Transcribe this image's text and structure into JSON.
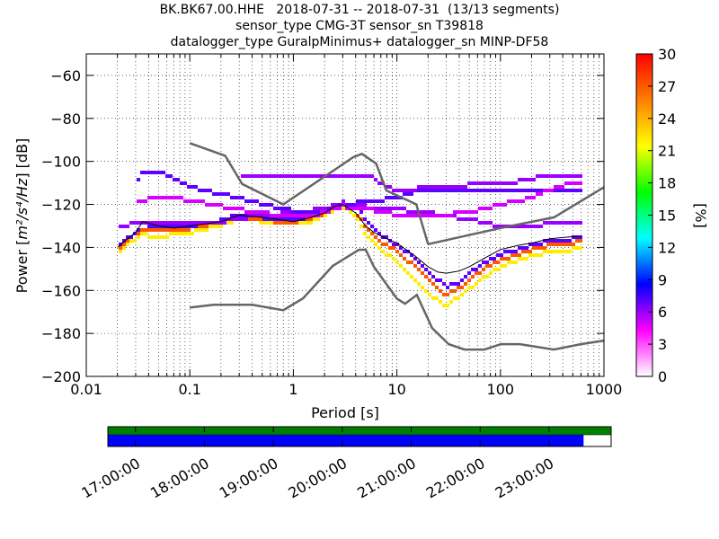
{
  "chart_data": {
    "type": "heatmap",
    "title": "BK.BK67.00.HHE   2018-07-31 -- 2018-07-31  (13/13 segments)",
    "subtitle_lines": [
      "sensor_type CMG-3T sensor_sn T39818",
      "datalogger_type GuralpMinimus+ datalogger_sn MINP-DF58"
    ],
    "xlabel": "Period [s]",
    "ylabel_prefix": "Power [",
    "ylabel_unit": "m²/s⁴/Hz",
    "ylabel_suffix": "] [dB]",
    "x_scale": "log",
    "xlim": [
      0.01,
      1000
    ],
    "ylim": [
      -200,
      -50
    ],
    "x_ticks": [
      0.01,
      0.1,
      1,
      10,
      100,
      1000
    ],
    "x_tick_labels": [
      "0.01",
      "0.1",
      "1",
      "10",
      "100",
      "1000"
    ],
    "y_ticks": [
      -200,
      -180,
      -160,
      -140,
      -120,
      -100,
      -80,
      -60
    ],
    "y_tick_labels": [
      "−200",
      "−180",
      "−160",
      "−140",
      "−120",
      "−100",
      "−80",
      "−60"
    ],
    "colorbar": {
      "label": "[%]",
      "range": [
        0,
        30
      ],
      "ticks": [
        0,
        3,
        6,
        9,
        12,
        15,
        18,
        21,
        24,
        27,
        30
      ],
      "tick_labels": [
        "0",
        "3",
        "6",
        "9",
        "12",
        "15",
        "18",
        "21",
        "24",
        "27",
        "30"
      ],
      "colormap": [
        "#ffffff",
        "#ff00ff",
        "#0000ff",
        "#00ffff",
        "#00ff00",
        "#ffff00",
        "#ff7f00",
        "#ff0000"
      ]
    },
    "noise_models": [
      {
        "period": [
          0.1,
          0.22,
          0.32,
          0.8,
          3.8,
          4.6,
          6.3,
          7.9,
          15.4,
          20
        ],
        "db": [
          -91.5,
          -97.4,
          -110.5,
          -120,
          -98,
          -96.5,
          -101,
          -113.5,
          -120,
          -138.5
        ]
      },
      {
        "period": [
          0.1,
          0.17,
          0.4,
          0.8,
          1.24,
          2.4,
          4.3,
          5,
          6,
          10,
          12,
          15.6,
          21.9,
          31.6,
          45,
          70,
          101,
          154,
          328,
          600,
          10000
        ],
        "db": [
          -168,
          -166.7,
          -166.7,
          -169.2,
          -163.7,
          -148.6,
          -141.1,
          -141.1,
          -149,
          -163.8,
          -166.2,
          -162.1,
          -177.5,
          -185,
          -187.5,
          -187.5,
          -185,
          -185,
          -187.5,
          -185,
          -176
        ]
      },
      {
        "period": [
          20,
          100,
          330,
          1000
        ],
        "db": [
          -138.5,
          -131,
          -126,
          -112
        ]
      }
    ],
    "mean_curve": {
      "period": [
        0.02,
        0.025,
        0.03,
        0.035,
        0.05,
        0.07,
        0.1,
        0.2,
        0.3,
        0.5,
        0.7,
        1,
        1.5,
        2,
        2.5,
        3,
        4,
        5,
        6,
        8,
        10,
        15,
        20,
        25,
        30,
        40,
        50,
        70,
        100,
        150,
        200,
        300,
        500,
        600
      ],
      "db": [
        -140,
        -136,
        -133,
        -128,
        -130,
        -131,
        -130,
        -128,
        -125,
        -126,
        -127,
        -128,
        -126,
        -124,
        -121,
        -120,
        -124,
        -130,
        -133,
        -136,
        -138,
        -144,
        -149,
        -151.5,
        -152,
        -151,
        -149,
        -145,
        -141,
        -139,
        -138,
        -136,
        -135,
        -135
      ]
    },
    "median_curve": {
      "period": [
        0.02,
        0.025,
        0.03,
        0.035,
        0.05,
        0.07,
        0.1,
        0.2,
        0.3,
        0.5,
        0.7,
        1,
        1.5,
        2,
        2.5,
        3,
        4,
        5,
        6,
        8,
        10,
        15,
        20,
        25,
        30,
        40,
        50,
        70,
        100,
        150,
        200,
        300,
        500,
        600
      ],
      "db": [
        -142,
        -138,
        -135,
        -131,
        -133,
        -133,
        -132,
        -129,
        -126,
        -127,
        -128,
        -128.5,
        -127,
        -125,
        -122,
        -121,
        -125,
        -132,
        -136,
        -140,
        -143,
        -151,
        -157,
        -161,
        -163,
        -160,
        -156,
        -151,
        -146,
        -143,
        -141,
        -140,
        -139,
        -138
      ]
    },
    "psd_bands": [
      {
        "period": [
          0.02,
          0.025,
          0.03,
          0.035,
          0.05,
          0.07,
          0.1,
          0.2,
          0.3,
          0.5,
          0.7,
          1,
          1.5,
          2,
          2.5,
          3,
          4,
          5,
          6,
          8,
          10,
          15,
          20,
          25,
          30,
          40,
          50,
          70,
          100,
          150,
          200,
          300,
          500,
          600
        ],
        "db": [
          -143,
          -139,
          -136,
          -134,
          -135,
          -134,
          -133,
          -130,
          -126.5,
          -128,
          -129,
          -129,
          -128,
          -125.5,
          -122.5,
          -121,
          -126,
          -134,
          -138,
          -143,
          -147,
          -156,
          -161,
          -165,
          -167,
          -163,
          -159,
          -154,
          -149,
          -146,
          -144,
          -142,
          -141,
          -140
        ],
        "pct": 22
      },
      {
        "period": [
          0.02,
          0.025,
          0.03,
          0.035,
          0.05,
          0.07,
          0.1,
          0.2,
          0.3,
          0.5,
          0.7,
          1,
          1.5,
          2,
          2.5,
          3,
          4,
          5,
          6,
          8,
          10,
          15,
          20,
          25,
          30,
          40,
          50,
          70,
          100,
          150,
          200,
          300,
          500,
          600
        ],
        "db": [
          -141,
          -137,
          -134,
          -131,
          -132,
          -132,
          -131,
          -128.5,
          -125.5,
          -127,
          -128,
          -128,
          -126.5,
          -124.5,
          -121.5,
          -120,
          -123,
          -130,
          -135,
          -139,
          -142,
          -149,
          -155,
          -159,
          -162,
          -159,
          -155,
          -150,
          -146,
          -143,
          -141,
          -139,
          -138,
          -137
        ],
        "pct": 27
      },
      {
        "period": [
          0.02,
          0.025,
          0.03,
          0.035,
          0.05,
          0.07,
          0.1,
          0.2,
          0.3,
          0.5,
          0.7,
          1,
          1.5,
          2,
          2.5,
          3,
          4,
          5,
          6,
          8,
          10,
          15,
          20,
          25,
          30,
          40,
          50,
          70,
          100,
          150,
          200,
          300,
          500,
          600
        ],
        "db": [
          -140,
          -136,
          -133,
          -129,
          -131,
          -131,
          -130,
          -127.5,
          -125,
          -126,
          -127,
          -127,
          -125.5,
          -123.5,
          -120.5,
          -119.5,
          -121,
          -127,
          -132,
          -136,
          -139,
          -145,
          -151,
          -155,
          -158,
          -156,
          -152,
          -147,
          -143,
          -141,
          -139,
          -137,
          -136,
          -135
        ],
        "pct": 7
      },
      {
        "period": [
          0.02,
          0.03,
          0.05,
          0.1,
          0.2,
          0.5,
          1,
          2,
          3,
          5,
          10,
          20,
          30,
          50,
          100,
          200,
          300,
          600
        ],
        "db": [
          -130,
          -129,
          -129,
          -129,
          -128,
          -125,
          -124,
          -122,
          -119,
          -121,
          -122,
          -124,
          -125,
          -127,
          -130,
          -131,
          -128,
          -128
        ],
        "pct": 6
      },
      {
        "period": [
          0.03,
          0.035,
          0.05,
          0.07,
          0.1,
          0.15,
          0.2,
          0.3,
          0.5,
          0.8,
          1,
          2,
          3,
          5,
          10,
          15,
          20,
          30,
          50,
          100,
          200,
          300,
          600
        ],
        "db": [
          -112,
          -105,
          -105,
          -108,
          -112,
          -114,
          -115,
          -117,
          -120,
          -122,
          -123,
          -123,
          -120,
          -119,
          -117,
          -114,
          -113,
          -113,
          -113,
          -113,
          -113,
          -113,
          -113
        ],
        "pct": 7
      },
      {
        "period": [
          0.03,
          0.05,
          0.1,
          0.2,
          0.5,
          1,
          2,
          3,
          5,
          10,
          20,
          50,
          100,
          200,
          300,
          500,
          600
        ],
        "db": [
          -119,
          -116,
          -118,
          -121,
          -124,
          -126,
          -124,
          -121,
          -122,
          -125,
          -125,
          -124,
          -120,
          -117,
          -113,
          -110,
          -110
        ],
        "pct": 5
      },
      {
        "period": [
          0.3,
          0.5,
          1,
          2,
          3,
          5,
          10,
          20,
          50,
          100,
          200,
          300,
          600
        ],
        "db": [
          -106,
          -106,
          -106,
          -106,
          -106,
          -106,
          -114,
          -112,
          -111,
          -111,
          -108,
          -106,
          -106
        ],
        "pct": 6
      }
    ],
    "timeline": {
      "tick_labels": [
        "17:00:00",
        "18:00:00",
        "19:00:00",
        "20:00:00",
        "21:00:00",
        "22:00:00",
        "23:00:00"
      ],
      "range_hours": [
        16.6,
        23.9
      ],
      "ticks_hours": [
        17,
        18,
        19,
        20,
        21,
        22,
        23
      ],
      "data_coverage_hours": [
        16.6,
        23.9
      ],
      "psd_coverage_hours": [
        16.6,
        23.5
      ],
      "data_color": "#008000",
      "psd_color": "#0000ff"
    }
  }
}
